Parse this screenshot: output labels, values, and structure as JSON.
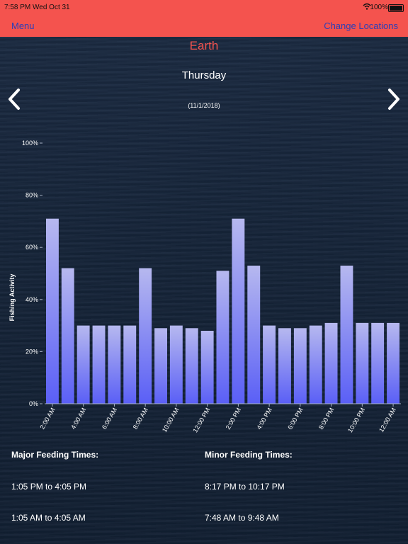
{
  "status_bar": {
    "time": "7:58 PM",
    "date": "Wed Oct 31",
    "battery": "100%"
  },
  "nav": {
    "menu_label": "Menu",
    "change_label": "Change Locations"
  },
  "header": {
    "location": "Earth",
    "day": "Thursday",
    "date": "(11/1/2018)"
  },
  "icons": {
    "prev": "chevron-left-icon",
    "next": "chevron-right-icon",
    "wifi": "wifi-icon",
    "battery": "battery-icon"
  },
  "colors": {
    "accent": "#f4534e",
    "nav_link": "#2b3fb8",
    "bar_top": "#b6b8ef",
    "bar_bottom": "#5a5ff6"
  },
  "feeding": {
    "major_title": "Major Feeding Times:",
    "minor_title": "Minor Feeding Times:",
    "major": [
      "1:05 PM to 4:05 PM",
      "1:05 AM to 4:05 AM"
    ],
    "minor": [
      "8:17 PM to 10:17 PM",
      "7:48 AM to 9:48 AM"
    ]
  },
  "chart_data": {
    "type": "bar",
    "ylabel": "Fishing Activity",
    "ylim": [
      0,
      100
    ],
    "yticks": [
      "0%",
      "20%",
      "40%",
      "60%",
      "80%",
      "100%"
    ],
    "xtick_labels": [
      "2:00 AM",
      "4:00 AM",
      "6:00 AM",
      "8:00 AM",
      "10:00 AM",
      "12:00 PM",
      "2:00 PM",
      "4:00 PM",
      "6:00 PM",
      "8:00 PM",
      "10:00 PM",
      "12:00 AM"
    ],
    "values": [
      71,
      52,
      30,
      30,
      30,
      30,
      52,
      29,
      30,
      29,
      28,
      51,
      71,
      53,
      30,
      29,
      29,
      30,
      31,
      53,
      31,
      31,
      31
    ]
  }
}
